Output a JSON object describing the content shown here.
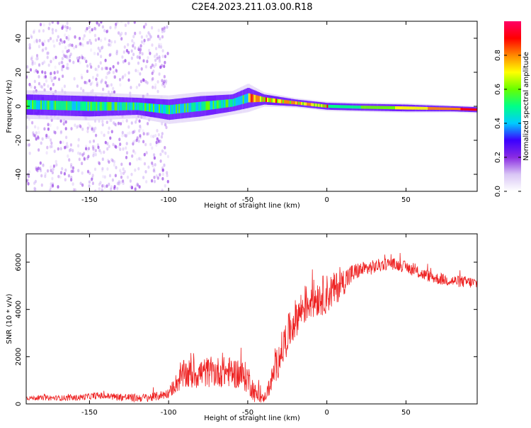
{
  "title": "C2E4.2023.211.03.00.R18",
  "chart_data": [
    {
      "type": "heatmap",
      "xlabel": "Height of straight line (km)",
      "ylabel": "Frequency (Hz)",
      "xlim": [
        -190,
        95
      ],
      "ylim": [
        -50,
        50
      ],
      "xticks": [
        -150,
        -100,
        -50,
        0,
        50
      ],
      "yticks": [
        -40,
        -20,
        0,
        20,
        40
      ],
      "grid": false,
      "trace": {
        "x": [
          -190,
          -150,
          -120,
          -100,
          -80,
          -60,
          -50,
          -40,
          -20,
          0,
          20,
          50,
          80,
          95
        ],
        "freq_center": [
          1,
          0,
          0,
          -2,
          0,
          2,
          5,
          4,
          2,
          0,
          -0.5,
          -1,
          -1.5,
          -2
        ],
        "half_width": [
          6,
          6,
          5,
          6,
          6,
          5,
          6,
          3,
          2,
          2,
          2,
          2,
          1.5,
          1.5
        ]
      },
      "colorbar": {
        "label": "Normalized spectral amplitude",
        "range": [
          0,
          1
        ],
        "ticks": [
          0.0,
          0.2,
          0.4,
          0.6,
          0.8
        ],
        "colors": [
          "#ffffff",
          "#d9c6f5",
          "#8a2be2",
          "#3b00ff",
          "#00ccff",
          "#00ff88",
          "#66ff00",
          "#ffff00",
          "#ff8800",
          "#ff0000",
          "#ff0066"
        ]
      }
    },
    {
      "type": "line",
      "xlabel": "Height of straight line (km)",
      "ylabel": "SNR (10 * v/v)",
      "xlim": [
        -190,
        95
      ],
      "ylim": [
        0,
        7200
      ],
      "xticks": [
        -150,
        -100,
        -50,
        0,
        50
      ],
      "yticks": [
        0,
        2000,
        4000,
        6000
      ],
      "color": "#ee2222",
      "envelope": {
        "x": [
          -190,
          -160,
          -145,
          -120,
          -110,
          -100,
          -95,
          -90,
          -85,
          -75,
          -60,
          -50,
          -45,
          -40,
          -37,
          -30,
          -25,
          -20,
          -15,
          -10,
          -5,
          0,
          5,
          10,
          15,
          20,
          30,
          35,
          40,
          50,
          60,
          70,
          80,
          90,
          95
        ],
        "y": [
          250,
          250,
          350,
          250,
          280,
          450,
          900,
          1250,
          1250,
          1350,
          1350,
          1100,
          400,
          200,
          600,
          2000,
          2900,
          3600,
          4100,
          4400,
          4550,
          4650,
          4850,
          5150,
          5450,
          5650,
          5800,
          5900,
          5950,
          5800,
          5500,
          5300,
          5200,
          5150,
          5100
        ]
      },
      "noise": {
        "x": [
          -190,
          -100,
          -90,
          -50,
          -40,
          -30,
          0,
          20,
          40,
          95
        ],
        "amplitude": [
          90,
          200,
          650,
          650,
          150,
          800,
          850,
          350,
          250,
          250
        ]
      }
    }
  ]
}
